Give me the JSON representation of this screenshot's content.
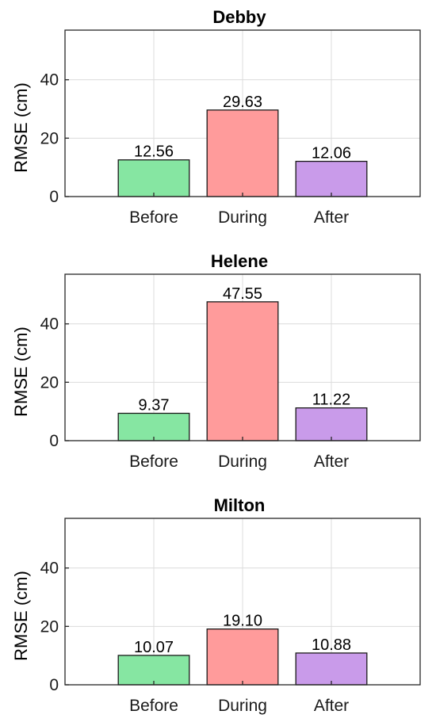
{
  "chart_data": [
    {
      "type": "bar",
      "title": "Debby",
      "ylabel": "RMSE (cm)",
      "categories": [
        "Before",
        "During",
        "After"
      ],
      "values": [
        12.56,
        29.63,
        12.06
      ],
      "value_labels": [
        "12.56",
        "29.63",
        "12.06"
      ],
      "colors": [
        "#86e6a2",
        "#ff9b9b",
        "#c99bea"
      ],
      "ylim": [
        0,
        57
      ],
      "yticks": [
        0,
        20,
        40
      ],
      "grid": true
    },
    {
      "type": "bar",
      "title": "Helene",
      "ylabel": "RMSE (cm)",
      "categories": [
        "Before",
        "During",
        "After"
      ],
      "values": [
        9.37,
        47.55,
        11.22
      ],
      "value_labels": [
        "9.37",
        "47.55",
        "11.22"
      ],
      "colors": [
        "#86e6a2",
        "#ff9b9b",
        "#c99bea"
      ],
      "ylim": [
        0,
        57
      ],
      "yticks": [
        0,
        20,
        40
      ],
      "grid": true
    },
    {
      "type": "bar",
      "title": "Milton",
      "ylabel": "RMSE (cm)",
      "categories": [
        "Before",
        "During",
        "After"
      ],
      "values": [
        10.07,
        19.1,
        10.88
      ],
      "value_labels": [
        "10.07",
        "19.10",
        "10.88"
      ],
      "colors": [
        "#86e6a2",
        "#ff9b9b",
        "#c99bea"
      ],
      "ylim": [
        0,
        57
      ],
      "yticks": [
        0,
        20,
        40
      ],
      "grid": true
    }
  ]
}
